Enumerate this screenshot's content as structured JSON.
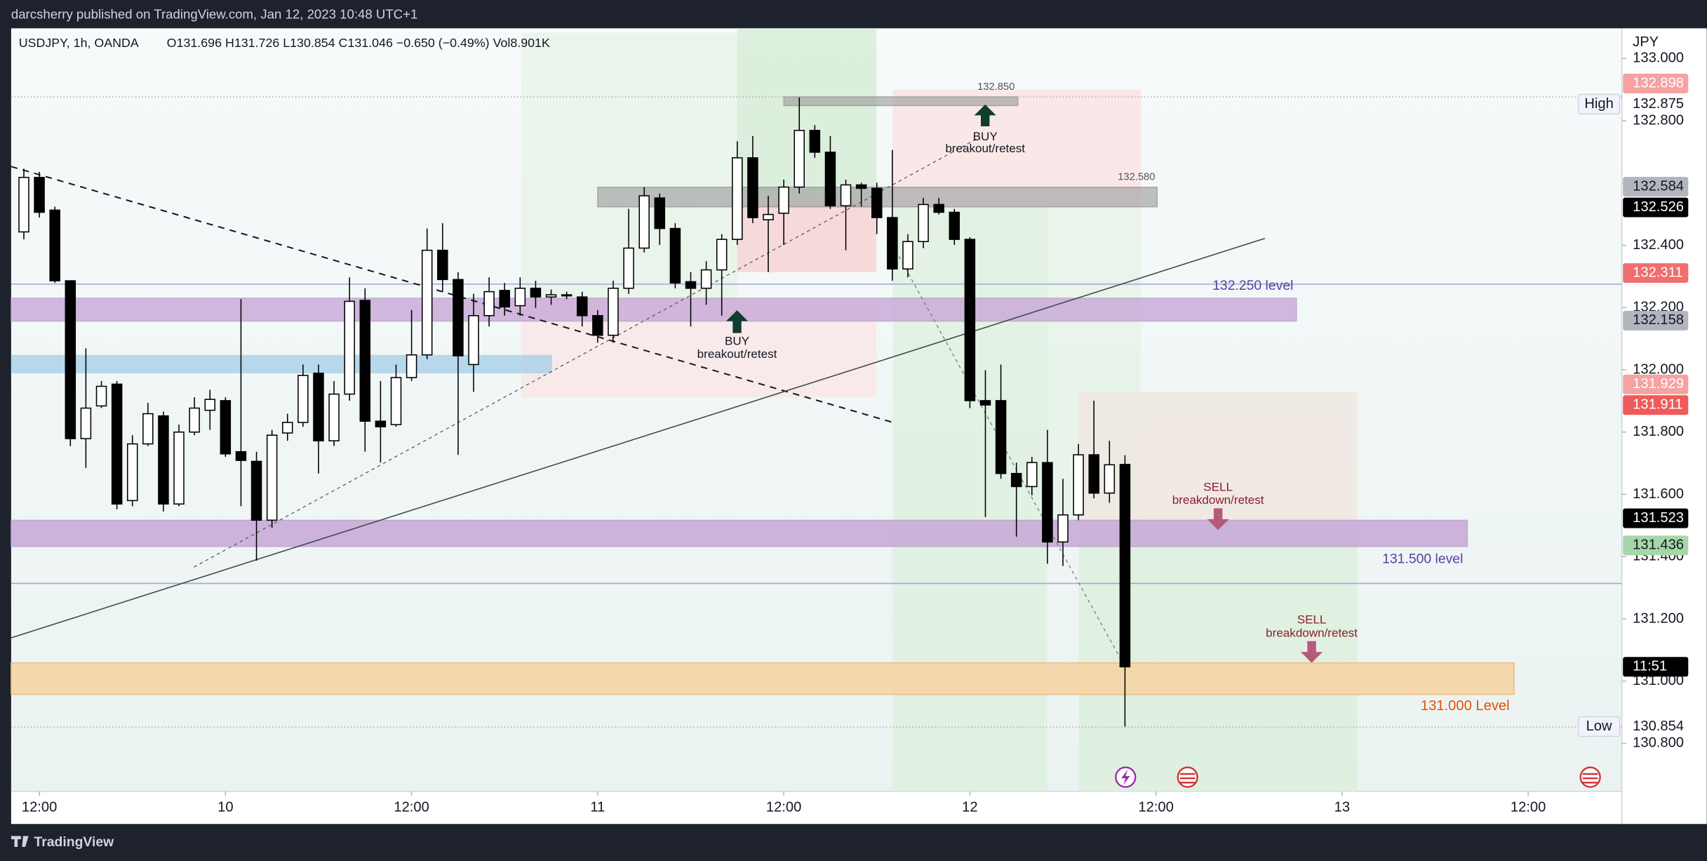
{
  "chart_data": {
    "type": "candlestick",
    "source": "darcsherry published on TradingView.com, Jan 12, 2023 10:48 UTC+1",
    "symbol": "USDJPY, 1h, OANDA",
    "ohlc_legend": "O131.696 H131.726 L130.854 C131.046 −0.650 (−0.49%) Vol8.901K",
    "currency": "JPY",
    "brand": "TradingView",
    "up_color": "#ffffff",
    "down_color": "#000000",
    "open": [
      132.443,
      132.618,
      132.513,
      132.286,
      131.779,
      131.884,
      131.954,
      131.58,
      131.762,
      131.852,
      131.569,
      131.8,
      131.87,
      131.901,
      131.737,
      131.706,
      131.517,
      131.797,
      131.831,
      131.989,
      131.772,
      131.922,
      132.223,
      131.835,
      131.824,
      131.975,
      132.048,
      132.384,
      132.29,
      132.017,
      132.174,
      132.255,
      132.206,
      132.262,
      132.234,
      132.238,
      132.234,
      132.174,
      132.111,
      132.262,
      132.391,
      132.552,
      132.454,
      132.283,
      132.262,
      132.321,
      132.419,
      132.681,
      132.482,
      132.503,
      132.587,
      132.769,
      132.699,
      132.527,
      132.594,
      132.583,
      132.489,
      132.324,
      132.412,
      132.531,
      132.506,
      132.419,
      131.901,
      131.901,
      131.667,
      131.625,
      131.702,
      131.447,
      131.534,
      131.727,
      131.604,
      131.696
    ],
    "high": [
      132.646,
      132.636,
      132.524,
      132.286,
      132.069,
      131.964,
      131.964,
      131.79,
      131.894,
      131.866,
      131.824,
      131.912,
      131.936,
      131.912,
      132.227,
      131.737,
      131.807,
      131.859,
      132.017,
      132.017,
      131.964,
      132.297,
      132.262,
      131.964,
      132.017,
      132.192,
      132.454,
      132.471,
      132.314,
      132.244,
      132.297,
      132.279,
      132.297,
      132.286,
      132.258,
      132.251,
      132.251,
      132.192,
      132.286,
      132.517,
      132.587,
      132.566,
      132.471,
      132.314,
      132.349,
      132.436,
      132.734,
      132.751,
      132.559,
      132.611,
      132.875,
      132.786,
      132.751,
      132.611,
      132.601,
      132.601,
      132.706,
      132.436,
      132.552,
      132.552,
      132.517,
      132.426,
      131.999,
      132.017,
      131.702,
      131.72,
      131.807,
      131.65,
      131.762,
      131.901,
      131.772,
      131.726
    ],
    "low": [
      132.419,
      132.489,
      132.279,
      131.755,
      131.685,
      131.877,
      131.552,
      131.562,
      131.755,
      131.545,
      131.562,
      131.79,
      131.807,
      131.72,
      131.562,
      131.387,
      131.492,
      131.772,
      131.817,
      131.667,
      131.755,
      131.901,
      131.737,
      131.702,
      131.817,
      131.964,
      132.034,
      132.251,
      131.727,
      131.929,
      132.139,
      132.174,
      132.174,
      132.199,
      132.209,
      132.227,
      132.139,
      132.087,
      132.087,
      132.244,
      132.377,
      132.401,
      132.262,
      132.139,
      132.209,
      132.174,
      132.401,
      132.471,
      132.314,
      132.401,
      132.566,
      132.681,
      132.517,
      132.384,
      132.524,
      132.436,
      132.286,
      132.297,
      132.391,
      132.499,
      132.401,
      131.877,
      131.527,
      131.65,
      131.464,
      131.597,
      131.377,
      131.37,
      131.517,
      131.587,
      131.573,
      130.854
    ],
    "close": [
      132.618,
      132.506,
      132.286,
      131.779,
      131.877,
      131.947,
      131.569,
      131.762,
      131.859,
      131.569,
      131.8,
      131.877,
      131.905,
      131.73,
      131.709,
      131.517,
      131.79,
      131.831,
      131.982,
      131.772,
      131.922,
      132.22,
      131.835,
      131.817,
      131.975,
      132.048,
      132.384,
      132.29,
      132.045,
      132.174,
      132.251,
      132.202,
      132.262,
      132.234,
      132.241,
      132.241,
      132.174,
      132.111,
      132.262,
      132.391,
      132.559,
      132.454,
      132.279,
      132.262,
      132.321,
      132.419,
      132.681,
      132.489,
      132.499,
      132.587,
      132.769,
      132.699,
      132.527,
      132.594,
      132.583,
      132.489,
      132.324,
      132.412,
      132.531,
      132.506,
      132.419,
      131.901,
      131.887,
      131.667,
      131.625,
      131.702,
      131.447,
      131.534,
      131.727,
      131.604,
      131.695,
      131.046
    ],
    "xlim": [
      -0.82,
      103.04
    ],
    "xticks": [
      {
        "value": 1,
        "label": "12:00"
      },
      {
        "value": 13,
        "label": "10"
      },
      {
        "value": 25,
        "label": "12:00"
      },
      {
        "value": 37,
        "label": "11"
      },
      {
        "value": 49,
        "label": "12:00"
      },
      {
        "value": 61,
        "label": "12"
      },
      {
        "value": 73,
        "label": "12:00"
      },
      {
        "value": 85,
        "label": "13"
      },
      {
        "value": 97,
        "label": "12:00"
      }
    ],
    "ylim": [
      130.646,
      133.097
    ],
    "yticks": [
      {
        "value": 130.8,
        "label": "130.800"
      },
      {
        "value": 131.0,
        "label": "131.000"
      },
      {
        "value": 131.2,
        "label": "131.200"
      },
      {
        "value": 131.4,
        "label": "131.400"
      },
      {
        "value": 131.6,
        "label": "131.600"
      },
      {
        "value": 131.8,
        "label": "131.800"
      },
      {
        "value": 132.0,
        "label": "132.000"
      },
      {
        "value": 132.2,
        "label": "132.200"
      },
      {
        "value": 132.4,
        "label": "132.400"
      },
      {
        "value": 132.6,
        "label": "132.600"
      },
      {
        "value": 132.8,
        "label": "132.800"
      },
      {
        "value": 133.0,
        "label": "133.000"
      }
    ],
    "grid": false,
    "price_markers": [
      {
        "price": 132.898,
        "bg": "#f7a1a1",
        "fg": "#ffffff"
      },
      {
        "price": 132.875,
        "bg": "#ffffff",
        "fg": "#131722",
        "tag": "High"
      },
      {
        "price": 132.584,
        "bg": "#b2b5be",
        "fg": "#131722"
      },
      {
        "price": 132.526,
        "bg": "#000000",
        "fg": "#ffffff"
      },
      {
        "price": 132.311,
        "bg": "#f06e6e",
        "fg": "#ffffff"
      },
      {
        "price": 132.158,
        "bg": "#b2b5be",
        "fg": "#131722"
      },
      {
        "price": 131.929,
        "bg": "#f7a1a1",
        "fg": "#ffffff"
      },
      {
        "price": 131.911,
        "bg": "#f05a5a",
        "fg": "#ffffff"
      },
      {
        "price": 131.523,
        "bg": "#000000",
        "fg": "#ffffff"
      },
      {
        "price": 131.436,
        "bg": "#a5d6a7",
        "fg": "#131722"
      },
      {
        "price": 130.854,
        "bg": "#ffffff",
        "fg": "#131722",
        "tag": "Low"
      }
    ],
    "countdown": "11:51",
    "level_labels": [
      "132.250 level",
      "131.500 level",
      "131.000 Level"
    ],
    "zone_labels": [
      "132.850",
      "132.580"
    ],
    "signals": [
      {
        "label": "BUY",
        "note": "breakout/retest"
      },
      {
        "label": "BUY",
        "note": "breakout/retest"
      },
      {
        "label": "SELL",
        "note": "breakdown/retest"
      },
      {
        "label": "SELL",
        "note": "breakdown/retest"
      }
    ]
  }
}
